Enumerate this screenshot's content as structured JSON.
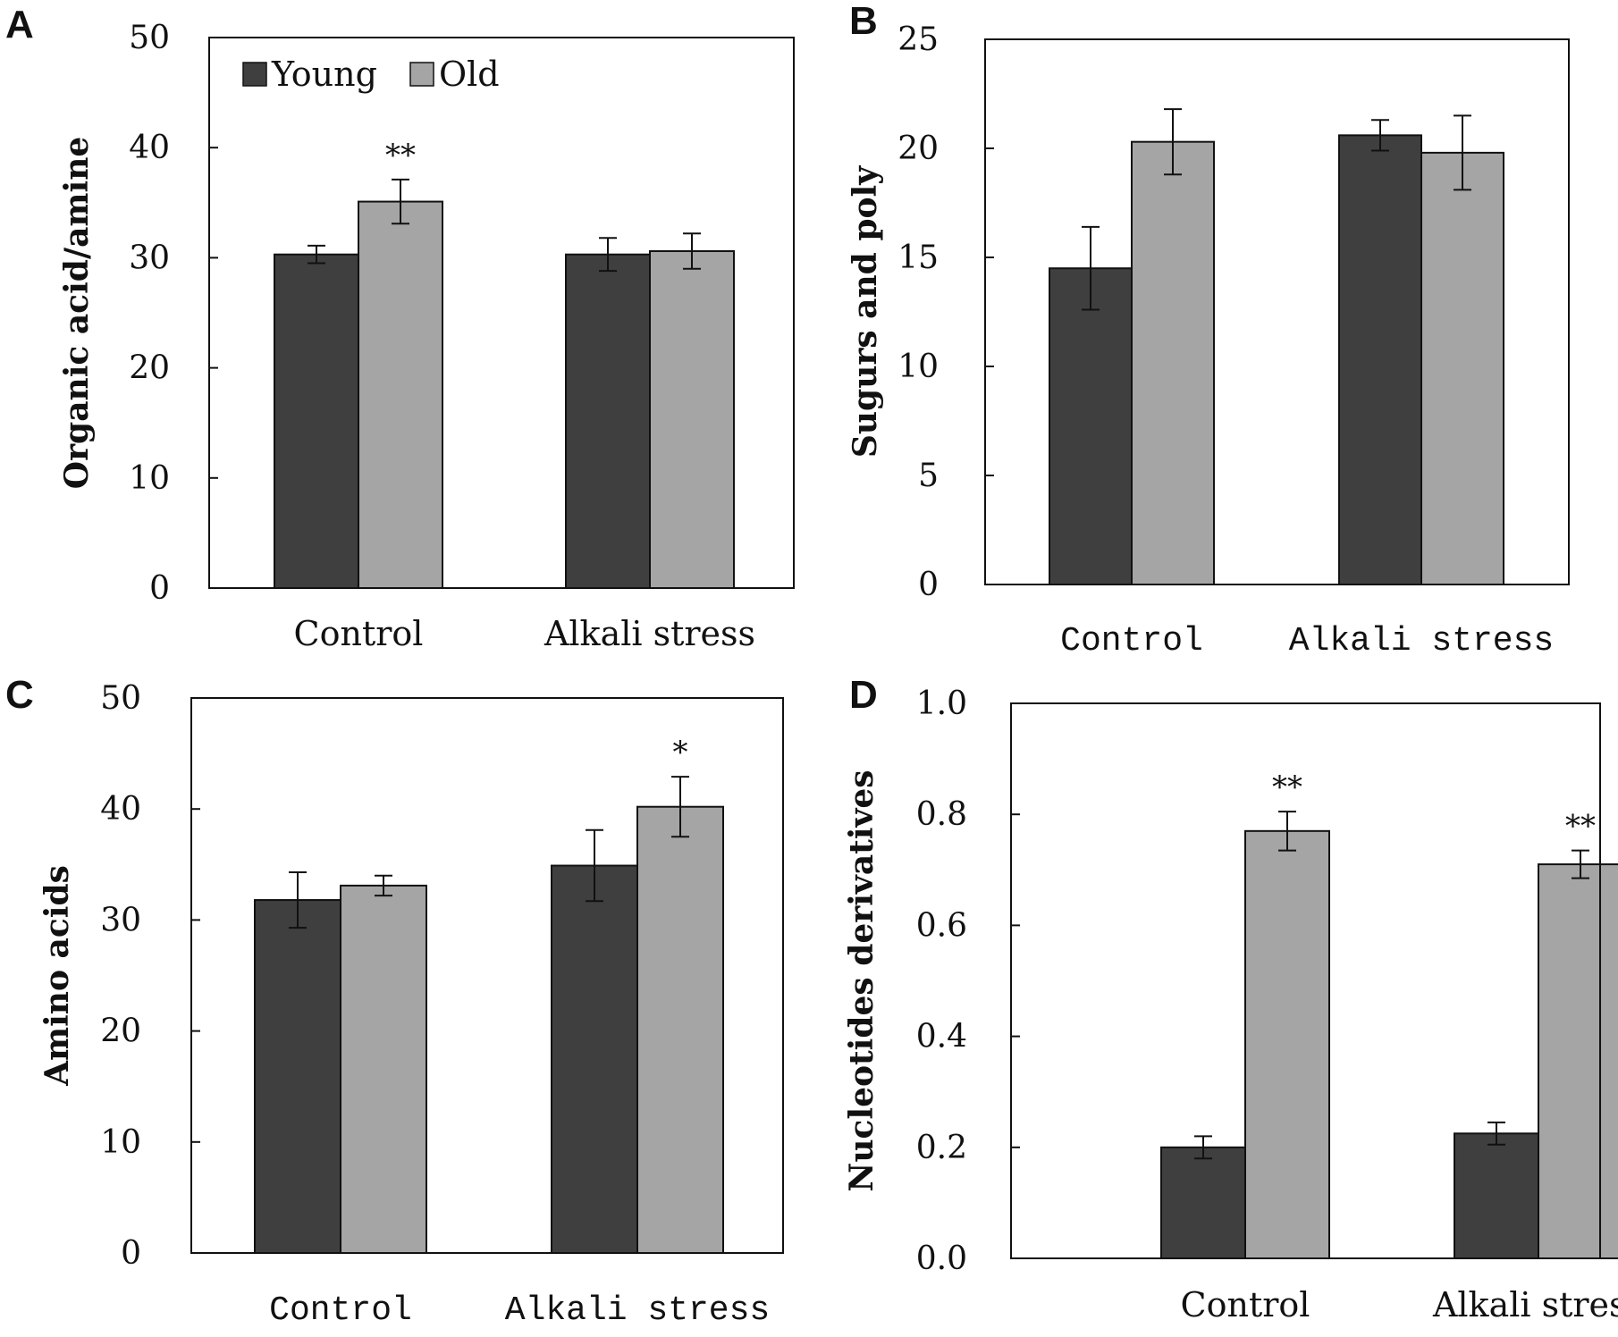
{
  "colors": {
    "young": "#3f3f3f",
    "old": "#a5a5a5",
    "axis": "#111111",
    "error": "#111111"
  },
  "legend": {
    "young": "Young",
    "old": "Old"
  },
  "chart_data": [
    {
      "panel": "A",
      "type": "bar",
      "categories": [
        "Control",
        "Alkali stress"
      ],
      "category_font": "serif",
      "series": [
        {
          "name": "Young",
          "values": [
            30.3,
            30.3
          ],
          "errors": [
            0.8,
            1.5
          ]
        },
        {
          "name": "Old",
          "values": [
            35.1,
            30.6
          ],
          "errors": [
            2.0,
            1.6
          ]
        }
      ],
      "significance": [
        {
          "series": "Old",
          "category": "Control",
          "label": "**"
        }
      ],
      "ylabel": "Organic acid/amine",
      "ylim": [
        0,
        50
      ],
      "yticks": [
        0,
        10,
        20,
        30,
        40,
        50
      ],
      "ytick_labels": [
        "0",
        "10",
        "20",
        "30",
        "40",
        "50"
      ],
      "legend_position": "top-left"
    },
    {
      "panel": "B",
      "type": "bar",
      "categories": [
        "Control",
        "Alkali stress"
      ],
      "category_font": "mono",
      "series": [
        {
          "name": "Young",
          "values": [
            14.5,
            20.6
          ],
          "errors": [
            1.9,
            0.7
          ]
        },
        {
          "name": "Old",
          "values": [
            20.3,
            19.8
          ],
          "errors": [
            1.5,
            1.7
          ]
        }
      ],
      "significance": [],
      "ylabel": "Sugurs and poly",
      "ylim": [
        0,
        25
      ],
      "yticks": [
        0,
        5,
        10,
        15,
        20,
        25
      ],
      "ytick_labels": [
        "0",
        "5",
        "10",
        "15",
        "20",
        "25"
      ]
    },
    {
      "panel": "C",
      "type": "bar",
      "categories": [
        "Control",
        "Alkali stress"
      ],
      "category_font": "mono",
      "series": [
        {
          "name": "Young",
          "values": [
            31.8,
            34.9
          ],
          "errors": [
            2.5,
            3.2
          ]
        },
        {
          "name": "Old",
          "values": [
            33.1,
            40.2
          ],
          "errors": [
            0.9,
            2.7
          ]
        }
      ],
      "significance": [
        {
          "series": "Old",
          "category": "Alkali stress",
          "label": "*"
        }
      ],
      "ylabel": "Amino acids",
      "ylim": [
        0,
        50
      ],
      "yticks": [
        0,
        10,
        20,
        30,
        40,
        50
      ],
      "ytick_labels": [
        "0",
        "10",
        "20",
        "30",
        "40",
        "50"
      ]
    },
    {
      "panel": "D",
      "type": "bar",
      "categories": [
        "Control",
        "Alkali stress"
      ],
      "category_font": "serif",
      "series": [
        {
          "name": "Young",
          "values": [
            0.2,
            0.225
          ],
          "errors": [
            0.02,
            0.02
          ]
        },
        {
          "name": "Old",
          "values": [
            0.77,
            0.71
          ],
          "errors": [
            0.035,
            0.025
          ]
        }
      ],
      "significance": [
        {
          "series": "Old",
          "category": "Control",
          "label": "**"
        },
        {
          "series": "Old",
          "category": "Alkali stress",
          "label": "**"
        }
      ],
      "ylabel": "Nucleotides derivatives",
      "ylim": [
        0,
        1.0
      ],
      "yticks": [
        0,
        0.2,
        0.4,
        0.6,
        0.8,
        1.0
      ],
      "ytick_labels": [
        "0.0",
        "0.2",
        "0.4",
        "0.6",
        "0.8",
        "1.0"
      ]
    }
  ]
}
